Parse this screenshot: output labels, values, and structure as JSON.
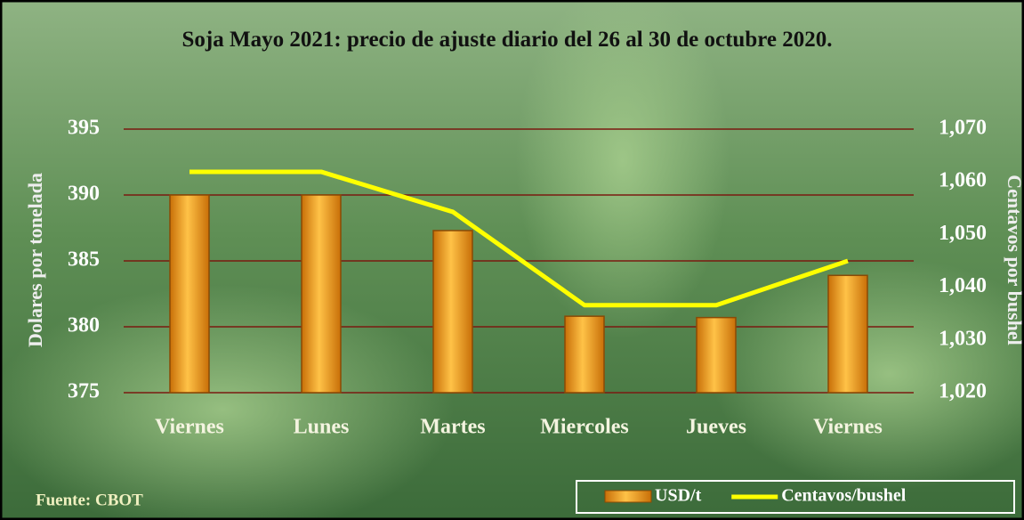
{
  "chart_data": {
    "type": "bar",
    "title": "Soja Mayo 2021: precio de ajuste diario  del 26 al 30 de octubre 2020.",
    "y_label": "Dolares por tonelada",
    "y2_label": "Centavos por bushel",
    "source": "Fuente:  CBOT",
    "categories": [
      "Viernes",
      "Lunes",
      "Martes",
      "Miercoles",
      "Jueves",
      "Viernes"
    ],
    "series": [
      {
        "name": "USD/t",
        "type": "bar",
        "color": "#f5a020",
        "values": [
          390.0,
          390.0,
          387.3,
          380.8,
          380.7,
          383.9
        ]
      },
      {
        "name": "Centavos/bushel",
        "type": "line",
        "color": "#ffff00",
        "axis": "y2",
        "values": [
          1061.9,
          1061.9,
          1054.3,
          1036.6,
          1036.6,
          1045.0
        ]
      }
    ],
    "ylim": [
      375,
      395
    ],
    "yticks": [
      375,
      380,
      385,
      390,
      395
    ],
    "y2lim": [
      1020,
      1070
    ],
    "y2ticks": [
      {
        "value": 1020,
        "label": "1,020"
      },
      {
        "value": 1030,
        "label": "1,030"
      },
      {
        "value": 1040,
        "label": "1,040"
      },
      {
        "value": 1050,
        "label": "1,050"
      },
      {
        "value": 1060,
        "label": "1,060"
      },
      {
        "value": 1070,
        "label": "1,070"
      }
    ],
    "grid": true,
    "legend": "bottom-right"
  }
}
